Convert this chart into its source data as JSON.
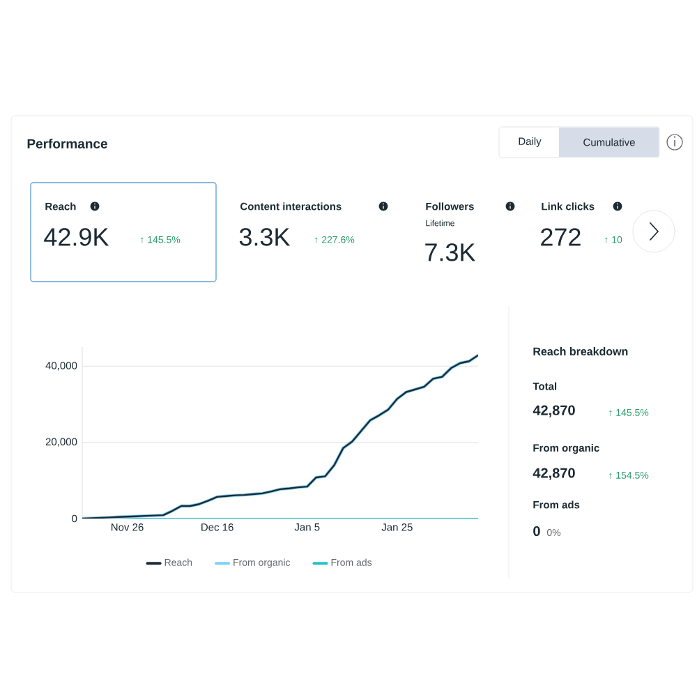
{
  "chart_data": {
    "type": "line",
    "title": "Performance",
    "categories": [
      null,
      null,
      null,
      null,
      null,
      "Nov 26",
      null,
      null,
      null,
      null,
      null,
      null,
      null,
      null,
      null,
      "Dec 16",
      null,
      null,
      null,
      null,
      null,
      null,
      null,
      null,
      null,
      "Jan 5",
      null,
      null,
      null,
      null,
      null,
      null,
      null,
      null,
      null,
      "Jan 25",
      null,
      null,
      null,
      null,
      null,
      null,
      null,
      null,
      null
    ],
    "series": [
      {
        "name": "Reach",
        "color": "#1c2b33",
        "values": [
          0,
          100,
          200,
          300,
          400,
          500,
          600,
          700,
          800,
          900,
          2000,
          3300,
          3300,
          3800,
          4700,
          5700,
          5900,
          6100,
          6200,
          6400,
          6600,
          7100,
          7700,
          7900,
          8200,
          8400,
          10800,
          11100,
          14000,
          18500,
          20200,
          23000,
          25800,
          27100,
          28600,
          31400,
          33200,
          33900,
          34600,
          36700,
          37200,
          39500,
          40800,
          41300,
          42870
        ]
      },
      {
        "name": "From organic",
        "color": "#7fd0f5",
        "values": [
          0,
          100,
          200,
          300,
          400,
          500,
          600,
          700,
          800,
          900,
          2000,
          3300,
          3300,
          3800,
          4700,
          5700,
          5900,
          6100,
          6200,
          6400,
          6600,
          7100,
          7700,
          7900,
          8200,
          8400,
          10800,
          11100,
          14000,
          18500,
          20200,
          23000,
          25800,
          27100,
          28600,
          31400,
          33200,
          33900,
          34600,
          36700,
          37200,
          39500,
          40800,
          41300,
          42870
        ]
      },
      {
        "name": "From ads",
        "color": "#1fc2c9",
        "values": [
          0,
          0,
          0,
          0,
          0,
          0,
          0,
          0,
          0,
          0,
          0,
          0,
          0,
          0,
          0,
          0,
          0,
          0,
          0,
          0,
          0,
          0,
          0,
          0,
          0,
          0,
          0,
          0,
          0,
          0,
          0,
          0,
          0,
          0,
          0,
          0,
          0,
          0,
          0,
          0,
          0,
          0,
          0,
          0,
          0
        ]
      }
    ],
    "ylim": [
      0,
      45000
    ],
    "yticks": [
      {
        "value": 0,
        "label": "0"
      },
      {
        "value": 20000,
        "label": "20,000"
      },
      {
        "value": 40000,
        "label": "40,000"
      }
    ],
    "grid": "y",
    "legend": "bottom",
    "marker": "none",
    "line_style": "solid",
    "annotations": [
      "Daily",
      "Cumulative",
      "Reach",
      "42.9K",
      "↑ 145.5%",
      "Content interactions",
      "3.3K",
      "↑ 227.6%",
      "Followers",
      "Lifetime",
      "7.3K",
      "Link clicks",
      "272",
      "↑ 10",
      "Reach breakdown",
      "Total",
      "42,870",
      "↑ 145.5%",
      "From organic",
      "42,870",
      "↑ 154.5%",
      "From ads",
      "0",
      "0%"
    ]
  }
}
